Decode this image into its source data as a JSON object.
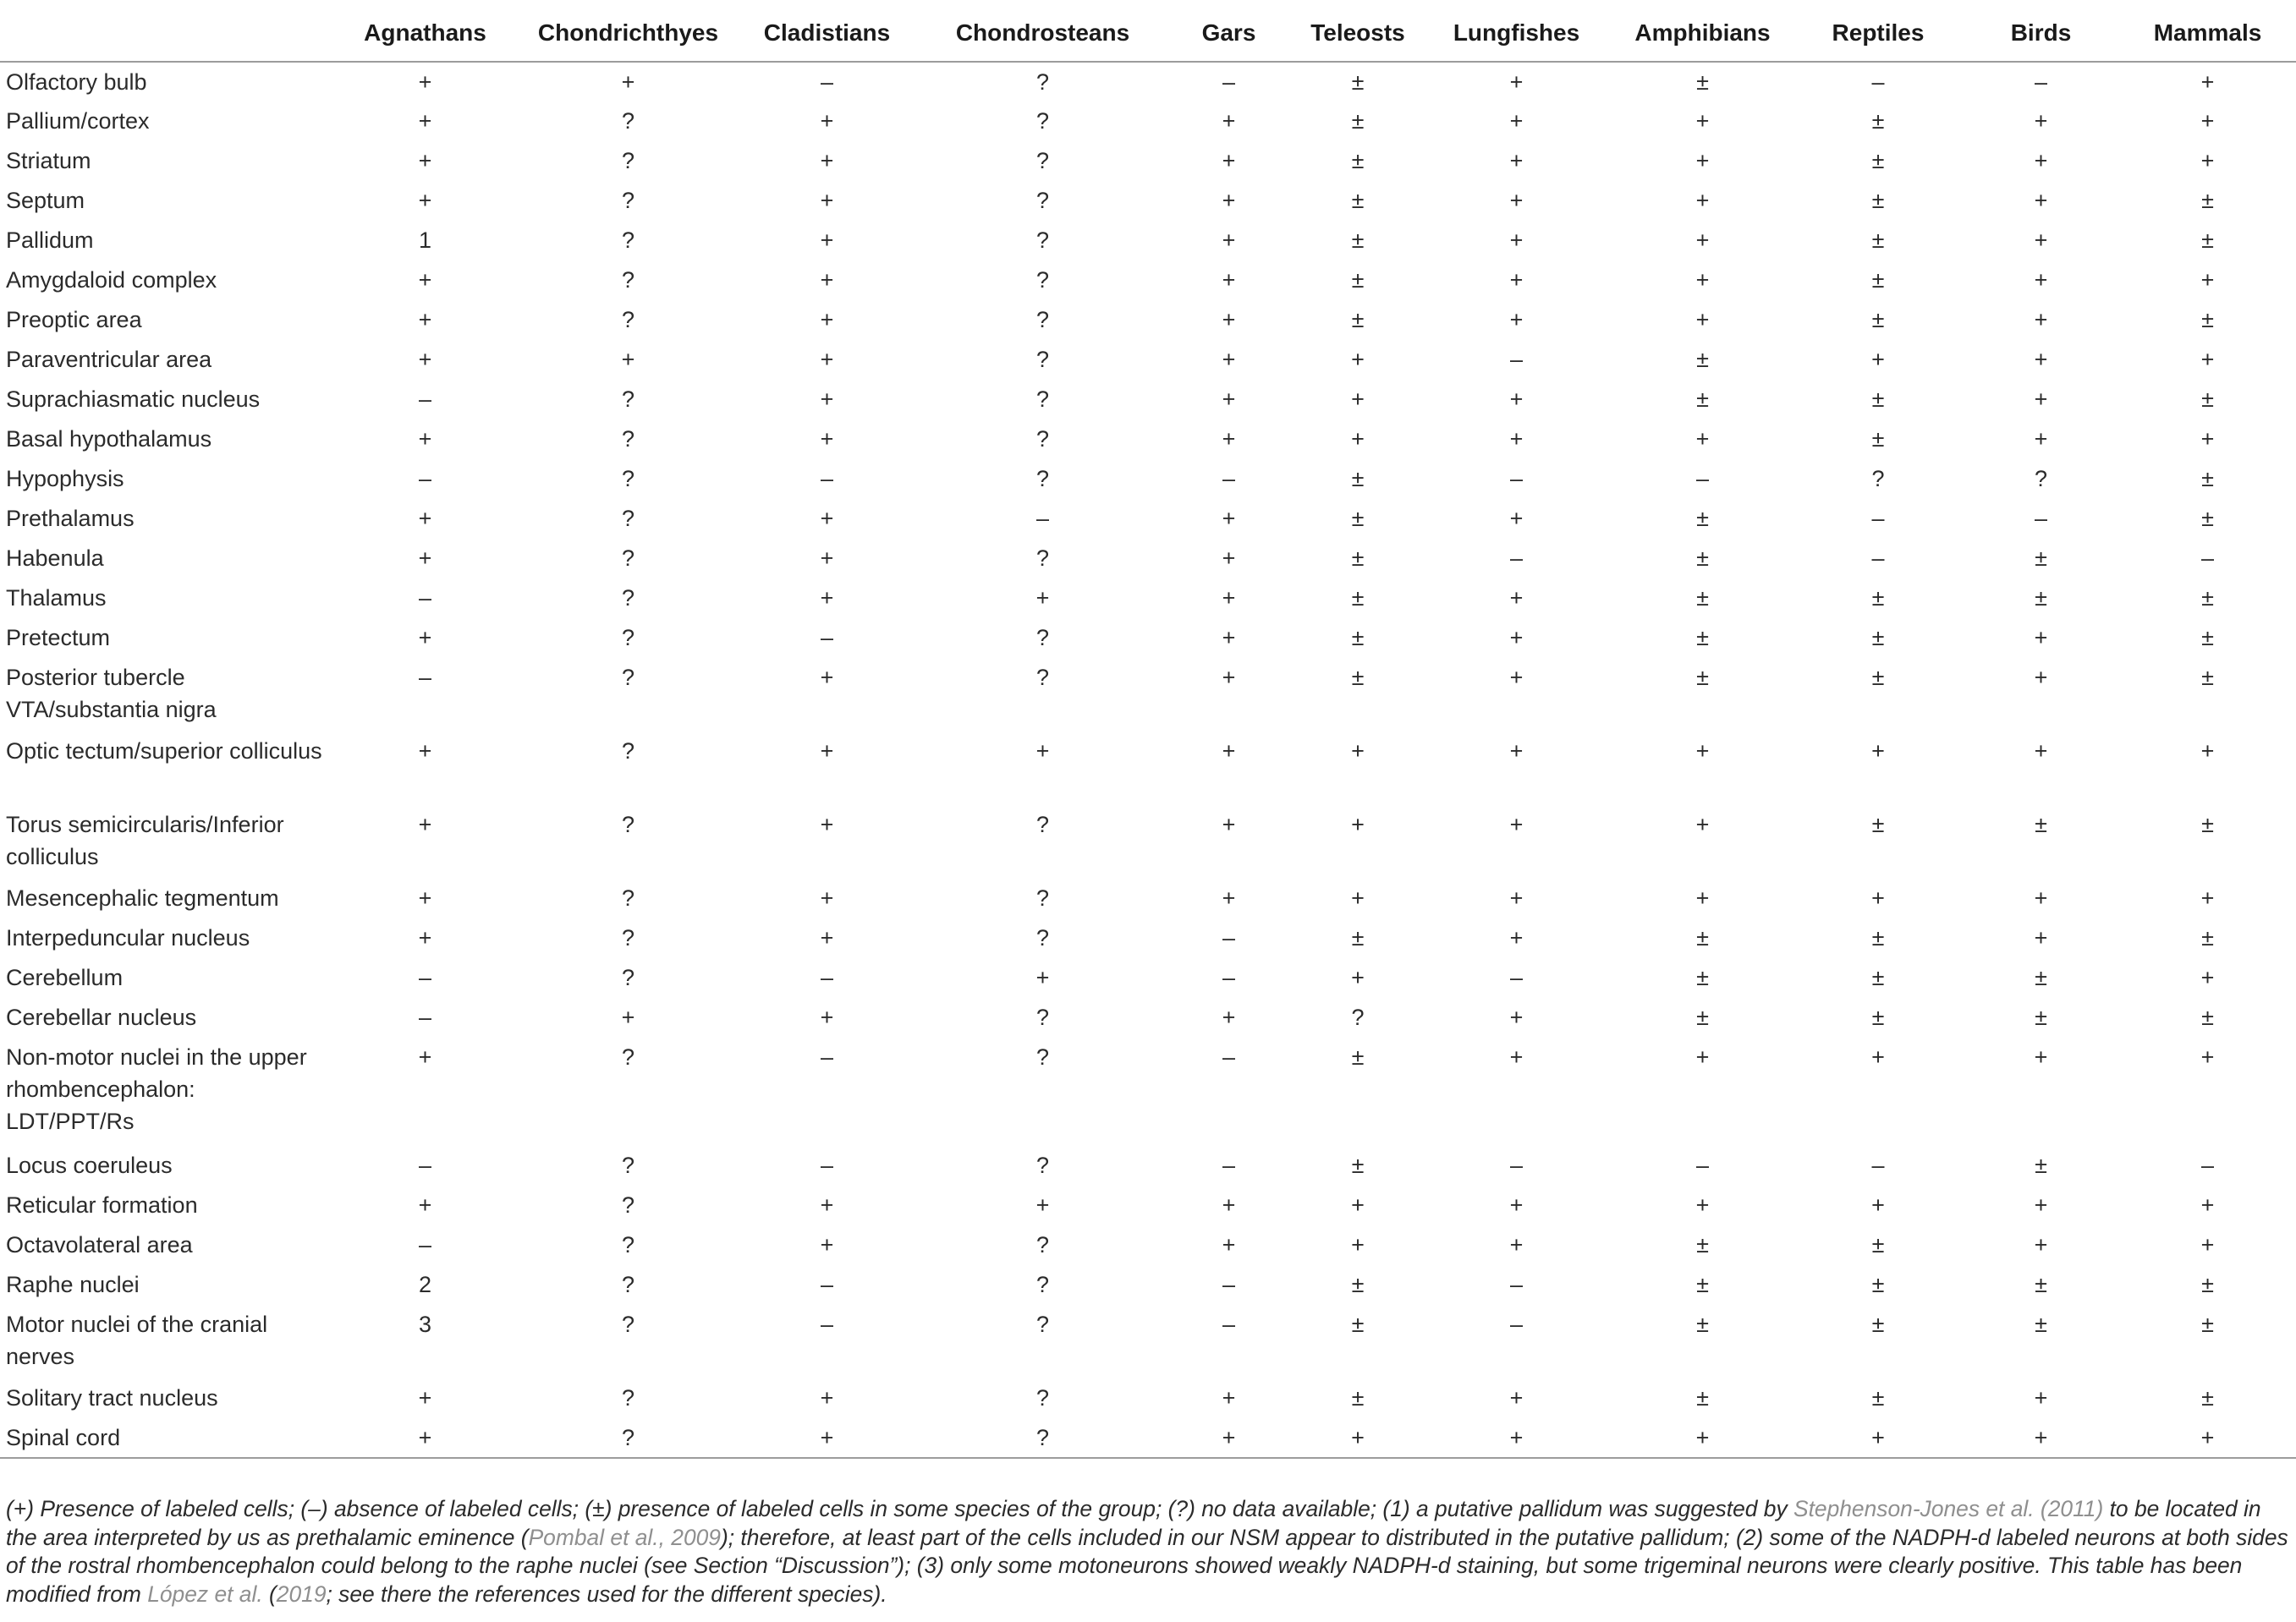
{
  "table": {
    "corner_header": "",
    "columns": [
      "Agnathans",
      "Chondrichthyes",
      "Cladistians",
      "Chondrosteans",
      "Gars",
      "Teleosts",
      "Lungfishes",
      "Amphibians",
      "Reptiles",
      "Birds",
      "Mammals"
    ],
    "rows": [
      {
        "label": "Olfactory bulb",
        "values": [
          "+",
          "+",
          "–",
          "?",
          "–",
          "±",
          "+",
          "±",
          "–",
          "–",
          "+"
        ]
      },
      {
        "label": "Pallium/cortex",
        "values": [
          "+",
          "?",
          "+",
          "?",
          "+",
          "±",
          "+",
          "+",
          "±",
          "+",
          "+"
        ]
      },
      {
        "label": "Striatum",
        "values": [
          "+",
          "?",
          "+",
          "?",
          "+",
          "±",
          "+",
          "+",
          "±",
          "+",
          "+"
        ]
      },
      {
        "label": "Septum",
        "values": [
          "+",
          "?",
          "+",
          "?",
          "+",
          "±",
          "+",
          "+",
          "±",
          "+",
          "±"
        ]
      },
      {
        "label": "Pallidum",
        "values": [
          "1",
          "?",
          "+",
          "?",
          "+",
          "±",
          "+",
          "+",
          "±",
          "+",
          "±"
        ]
      },
      {
        "label": "Amygdaloid complex",
        "values": [
          "+",
          "?",
          "+",
          "?",
          "+",
          "±",
          "+",
          "+",
          "±",
          "+",
          "+"
        ]
      },
      {
        "label": "Preoptic area",
        "values": [
          "+",
          "?",
          "+",
          "?",
          "+",
          "±",
          "+",
          "+",
          "±",
          "+",
          "±"
        ]
      },
      {
        "label": "Paraventricular area",
        "values": [
          "+",
          "+",
          "+",
          "?",
          "+",
          "+",
          "–",
          "±",
          "+",
          "+",
          "+"
        ]
      },
      {
        "label": "Suprachiasmatic nucleus",
        "values": [
          "–",
          "?",
          "+",
          "?",
          "+",
          "+",
          "+",
          "±",
          "±",
          "+",
          "±"
        ]
      },
      {
        "label": "Basal hypothalamus",
        "values": [
          "+",
          "?",
          "+",
          "?",
          "+",
          "+",
          "+",
          "+",
          "±",
          "+",
          "+"
        ]
      },
      {
        "label": "Hypophysis",
        "values": [
          "–",
          "?",
          "–",
          "?",
          "–",
          "±",
          "–",
          "–",
          "?",
          "?",
          "±"
        ]
      },
      {
        "label": "Prethalamus",
        "values": [
          "+",
          "?",
          "+",
          "–",
          "+",
          "±",
          "+",
          "±",
          "–",
          "–",
          "±"
        ]
      },
      {
        "label": "Habenula",
        "values": [
          "+",
          "?",
          "+",
          "?",
          "+",
          "±",
          "–",
          "±",
          "–",
          "±",
          "–"
        ]
      },
      {
        "label": "Thalamus",
        "values": [
          "–",
          "?",
          "+",
          "+",
          "+",
          "±",
          "+",
          "±",
          "±",
          "±",
          "±"
        ]
      },
      {
        "label": "Pretectum",
        "values": [
          "+",
          "?",
          "–",
          "?",
          "+",
          "±",
          "+",
          "±",
          "±",
          "+",
          "±"
        ]
      },
      {
        "label": "Posterior tubercle VTA/substantia nigra",
        "values": [
          "–",
          "?",
          "+",
          "?",
          "+",
          "±",
          "+",
          "±",
          "±",
          "+",
          "±"
        ],
        "size": "r2"
      },
      {
        "label": "Optic tectum/superior colliculus",
        "values": [
          "+",
          "?",
          "+",
          "+",
          "+",
          "+",
          "+",
          "+",
          "+",
          "+",
          "+"
        ],
        "size": "r2"
      },
      {
        "label": "Torus semicircularis/Inferior colliculus",
        "values": [
          "+",
          "?",
          "+",
          "?",
          "+",
          "+",
          "+",
          "+",
          "±",
          "±",
          "±"
        ],
        "size": "r2"
      },
      {
        "label": "Mesencephalic tegmentum",
        "values": [
          "+",
          "?",
          "+",
          "?",
          "+",
          "+",
          "+",
          "+",
          "+",
          "+",
          "+"
        ]
      },
      {
        "label": "Interpeduncular nucleus",
        "values": [
          "+",
          "?",
          "+",
          "?",
          "–",
          "±",
          "+",
          "±",
          "±",
          "+",
          "±"
        ]
      },
      {
        "label": "Cerebellum",
        "values": [
          "–",
          "?",
          "–",
          "+",
          "–",
          "+",
          "–",
          "±",
          "±",
          "±",
          "+"
        ]
      },
      {
        "label": "Cerebellar nucleus",
        "values": [
          "–",
          "+",
          "+",
          "?",
          "+",
          "?",
          "+",
          "±",
          "±",
          "±",
          "±"
        ]
      },
      {
        "label": "Non-motor nuclei in the upper rhombencephalon: LDT/PPT/Rs",
        "values": [
          "+",
          "?",
          "–",
          "?",
          "–",
          "±",
          "+",
          "+",
          "+",
          "+",
          "+"
        ],
        "size": "r3"
      },
      {
        "label": "Locus coeruleus",
        "values": [
          "–",
          "?",
          "–",
          "?",
          "–",
          "±",
          "–",
          "–",
          "–",
          "±",
          "–"
        ]
      },
      {
        "label": "Reticular formation",
        "values": [
          "+",
          "?",
          "+",
          "+",
          "+",
          "+",
          "+",
          "+",
          "+",
          "+",
          "+"
        ]
      },
      {
        "label": "Octavolateral area",
        "values": [
          "–",
          "?",
          "+",
          "?",
          "+",
          "+",
          "+",
          "±",
          "±",
          "+",
          "+"
        ]
      },
      {
        "label": "Raphe nuclei",
        "values": [
          "2",
          "?",
          "–",
          "?",
          "–",
          "±",
          "–",
          "±",
          "±",
          "±",
          "±"
        ]
      },
      {
        "label": "Motor nuclei of the cranial nerves",
        "values": [
          "3",
          "?",
          "–",
          "?",
          "–",
          "±",
          "–",
          "±",
          "±",
          "±",
          "±"
        ],
        "size": "r2"
      },
      {
        "label": "Solitary tract nucleus",
        "values": [
          "+",
          "?",
          "+",
          "?",
          "+",
          "±",
          "+",
          "±",
          "±",
          "+",
          "±"
        ]
      },
      {
        "label": "Spinal cord",
        "values": [
          "+",
          "?",
          "+",
          "?",
          "+",
          "+",
          "+",
          "+",
          "+",
          "+",
          "+"
        ]
      }
    ]
  },
  "footnote": {
    "t1": "(+) Presence of labeled cells; (–) absence of labeled cells; (±) presence of labeled cells in some species of the group; (?) no data available; (1) a putative pallidum was suggested by ",
    "ref1": "Stephenson-Jones et al. (2011)",
    "t2": " to be located in the area interpreted by us as prethalamic eminence (",
    "ref2": "Pombal et al., 2009",
    "t3": "); therefore, at least part of the cells included in our NSM appear to distributed in the putative pallidum; (2) some of the NADPH-d labeled neurons at both sides of the rostral rhombencephalon could belong to the raphe nuclei (see Section “Discussion”); (3) only some motoneurons showed weakly NADPH-d staining, but some trigeminal neurons were clearly positive. This table has been modified from ",
    "ref3": "López et al.",
    "t4": " (",
    "ref4": "2019",
    "t5": "; see there the references used for the different species)."
  }
}
